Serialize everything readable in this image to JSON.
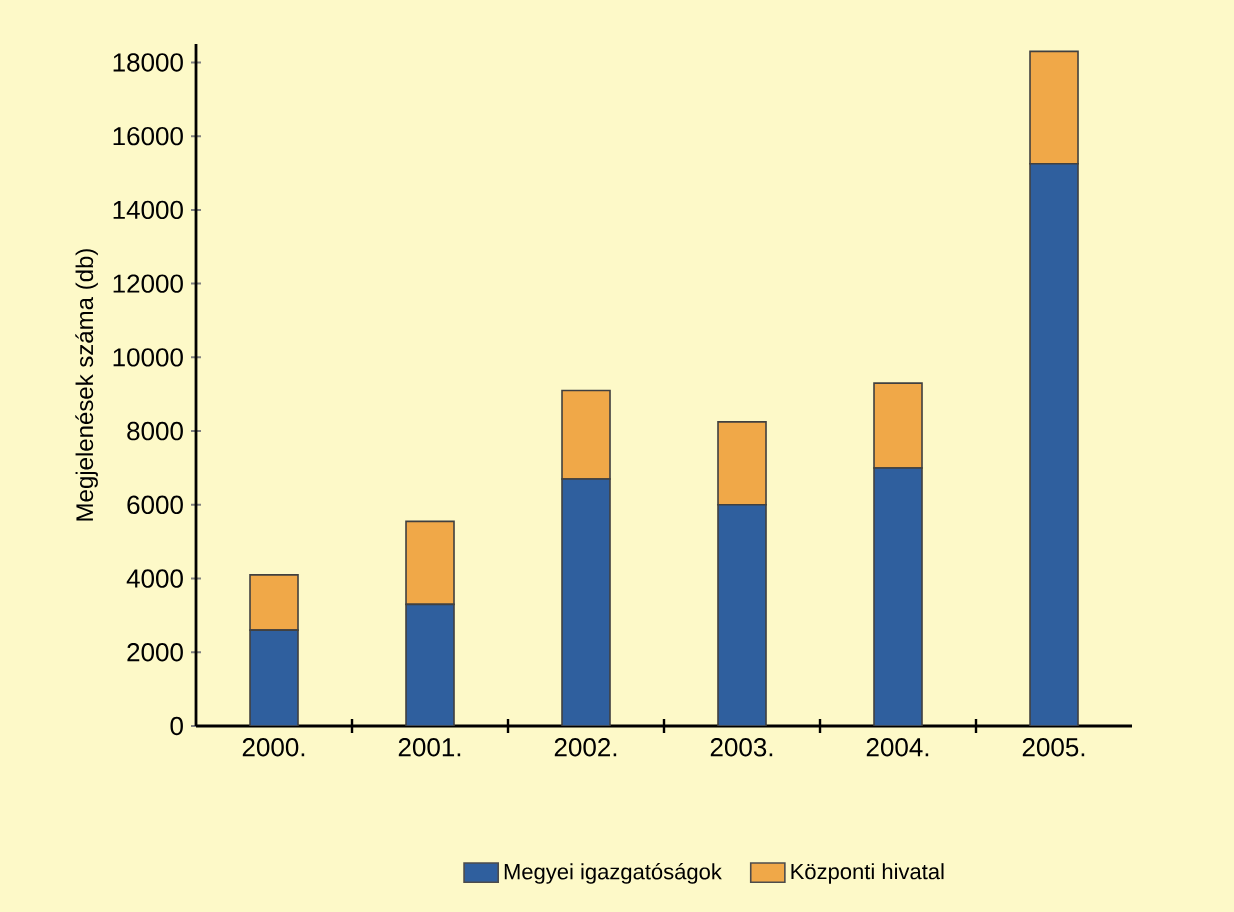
{
  "chart_data": {
    "type": "bar",
    "stacked": true,
    "ylabel": "Megjelenések száma (db)",
    "categories": [
      "2000.",
      "2001.",
      "2002.",
      "2003.",
      "2004.",
      "2005."
    ],
    "series": [
      {
        "name": "Megyei igazgatóságok",
        "color": "#2f5f9e",
        "values": [
          2600,
          3300,
          6700,
          6000,
          7000,
          15250
        ]
      },
      {
        "name": "Központi hivatal",
        "color": "#f0a848",
        "values": [
          1500,
          2250,
          2400,
          2250,
          2300,
          3050
        ]
      }
    ],
    "ylim": [
      0,
      18500
    ],
    "yticks": [
      0,
      2000,
      4000,
      6000,
      8000,
      10000,
      12000,
      14000,
      16000,
      18000
    ],
    "grid": false,
    "legend": "bottom"
  }
}
